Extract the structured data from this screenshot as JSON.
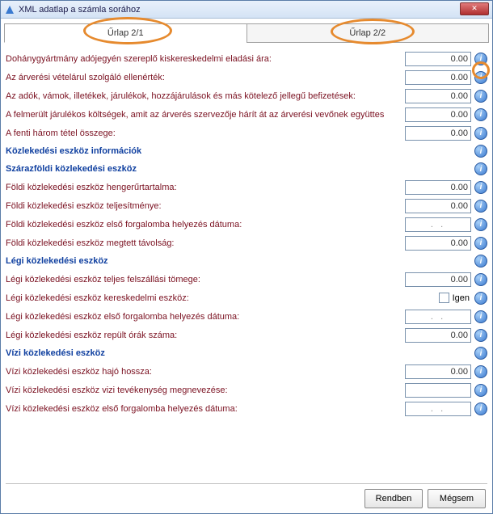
{
  "window": {
    "title": "XML adatlap  a számla sorához"
  },
  "tabs": {
    "tab1": "Űrlap 2/1",
    "tab2": "Űrlap 2/2"
  },
  "rows": [
    {
      "type": "field",
      "label": "Dohánygyártmány adójegyén szereplő kiskereskedelmi eladási ára:",
      "value": "0.00",
      "input": "number"
    },
    {
      "type": "field",
      "label": "Az árverési vételárul szolgáló ellenérték:",
      "value": "0.00",
      "input": "number"
    },
    {
      "type": "field",
      "label": "Az adók, vámok, illetékek, járulékok, hozzájárulások és más kötelező jellegű befizetések:",
      "value": "0.00",
      "input": "number"
    },
    {
      "type": "field",
      "label": "A felmerült járulékos költségek, amit az árverés szervezője hárít át az árverési vevőnek együttes",
      "value": "0.00",
      "input": "number"
    },
    {
      "type": "field",
      "label": "A fenti három tétel összege:",
      "value": "0.00",
      "input": "number"
    },
    {
      "type": "section",
      "label": "Közlekedési eszköz információk"
    },
    {
      "type": "section",
      "label": "Szárazföldi közlekedési eszköz"
    },
    {
      "type": "field",
      "label": "Földi közlekedési eszköz hengerűrtartalma:",
      "value": "0.00",
      "input": "number"
    },
    {
      "type": "field",
      "label": "Földi közlekedési eszköz teljesítménye:",
      "value": "0.00",
      "input": "number"
    },
    {
      "type": "field",
      "label": "Földi közlekedési eszköz első forgalomba helyezés dátuma:",
      "value": ".   .",
      "input": "date"
    },
    {
      "type": "field",
      "label": "Földi közlekedési eszköz megtett távolság:",
      "value": "0.00",
      "input": "number"
    },
    {
      "type": "section",
      "label": "Légi közlekedési eszköz"
    },
    {
      "type": "field",
      "label": "Légi közlekedési eszköz teljes felszállási tömege:",
      "value": "0.00",
      "input": "number"
    },
    {
      "type": "field",
      "label": "Légi közlekedési eszköz kereskedelmi eszköz:",
      "value": "Igen",
      "input": "checkbox"
    },
    {
      "type": "field",
      "label": "Légi közlekedési eszköz első forgalomba helyezés dátuma:",
      "value": ".   .",
      "input": "date"
    },
    {
      "type": "field",
      "label": "Légi közlekedési eszköz repült órák száma:",
      "value": "0.00",
      "input": "number"
    },
    {
      "type": "section",
      "label": "Vízi közlekedési eszköz"
    },
    {
      "type": "field",
      "label": "Vízi közlekedési eszköz hajó hossza:",
      "value": "0.00",
      "input": "number"
    },
    {
      "type": "field",
      "label": "Vízi közlekedési eszköz vizi tevékenység megnevezése:",
      "value": "",
      "input": "text"
    },
    {
      "type": "field",
      "label": "Vízi közlekedési eszköz első forgalomba helyezés dátuma:",
      "value": ".   .",
      "input": "date"
    }
  ],
  "footer": {
    "ok": "Rendben",
    "cancel": "Mégsem"
  },
  "colors": {
    "label": "#7a1020",
    "section": "#1040a0",
    "highlight": "#e68a2e"
  }
}
